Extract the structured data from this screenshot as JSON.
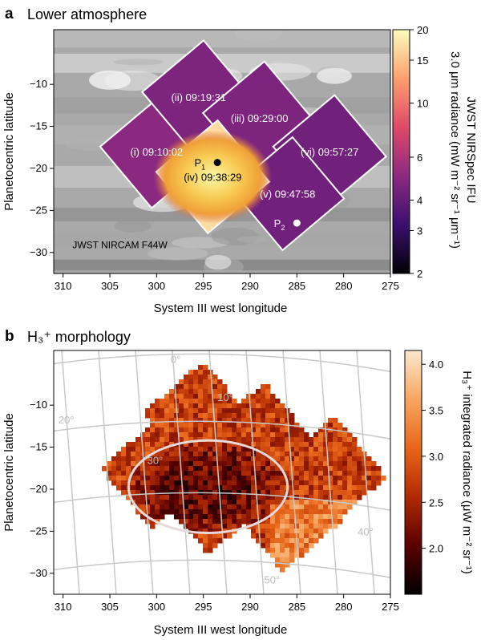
{
  "colors": {
    "bg": "#ffffff",
    "axis": "#000000",
    "grid": "#c8c8c8",
    "grid_label": "#bdbdbd",
    "ellipse": "#e7d7d7",
    "tile_border": "#ffffff",
    "marker_dark": "#000000",
    "marker_light": "#ffffff",
    "cmap_a": [
      "#000004",
      "#3b0f70",
      "#8c2981",
      "#de4968",
      "#fe9f6d",
      "#fcfdbf"
    ],
    "cmap_b": [
      "#000000",
      "#5a0000",
      "#b02a02",
      "#e8661a",
      "#f8a660",
      "#fde8d0"
    ]
  },
  "chart_data": [
    {
      "panel": "a",
      "title": "Lower atmosphere",
      "type": "heatmap",
      "xlabel": "System III west longitude",
      "ylabel": "Planetocentric latitude",
      "xlim": [
        311,
        275
      ],
      "ylim": [
        -32.5,
        -3.5
      ],
      "xticks": [
        310,
        305,
        300,
        295,
        290,
        285,
        280,
        275
      ],
      "yticks": [
        -10,
        -15,
        -20,
        -25,
        -30
      ],
      "background_label": "JWST NIRCAM F44W",
      "colorbar": {
        "label": "3.0 μm radiance (mW m⁻² sr⁻¹ μm⁻¹)",
        "label_line2": "JWST NIRSpec IFU",
        "scale": "log",
        "range": [
          2,
          20
        ],
        "ticks": [
          2,
          3,
          4,
          6,
          10,
          15,
          20
        ]
      },
      "tiles": [
        {
          "label": "(i) 09:10:02",
          "lon_center": 300.0,
          "lat_center": -18.0,
          "radiance": 5.0
        },
        {
          "label": "(ii) 09:19:31",
          "lon_center": 295.5,
          "lat_center": -11.5,
          "radiance": 4.6
        },
        {
          "label": "(iii) 09:29:00",
          "lon_center": 289.0,
          "lat_center": -14.0,
          "radiance": 4.6
        },
        {
          "label": "(iv) 09:38:29",
          "lon_center": 294.0,
          "lat_center": -21.0,
          "radiance": 17.0
        },
        {
          "label": "(v) 09:47:58",
          "lon_center": 286.0,
          "lat_center": -23.0,
          "radiance": 4.3
        },
        {
          "label": "(vi) 09:57:27",
          "lon_center": 281.5,
          "lat_center": -18.0,
          "radiance": 4.3
        }
      ],
      "points": [
        {
          "label": "P1",
          "label_base": "P",
          "label_sub": "1",
          "lon": 293.5,
          "lat": -19.3
        },
        {
          "label": "P2",
          "label_base": "P",
          "label_sub": "2",
          "lon": 285.0,
          "lat": -26.5
        }
      ]
    },
    {
      "panel": "b",
      "title": "H₃⁺ morphology",
      "type": "heatmap",
      "xlabel": "System III west longitude",
      "ylabel": "Planetocentric latitude",
      "xlim": [
        311,
        275
      ],
      "ylim": [
        -32.5,
        -3.5
      ],
      "xticks": [
        310,
        305,
        300,
        295,
        290,
        285,
        280,
        275
      ],
      "yticks": [
        -10,
        -15,
        -20,
        -25,
        -30
      ],
      "colorbar": {
        "label": "H₃⁺ integrated radiance (μW m⁻² sr⁻¹)",
        "range": [
          1.5,
          4.15
        ],
        "ticks": [
          2.0,
          2.5,
          3.0,
          3.5,
          4.0
        ]
      },
      "grid_labels": [
        "0°",
        "10°",
        "20°",
        "30°",
        "40°",
        "50°"
      ],
      "ellipse": {
        "lon_center": 294.5,
        "lat_center": -19.7,
        "lon_halfwidth": 8.5,
        "lat_halfheight": 5.5
      }
    }
  ]
}
